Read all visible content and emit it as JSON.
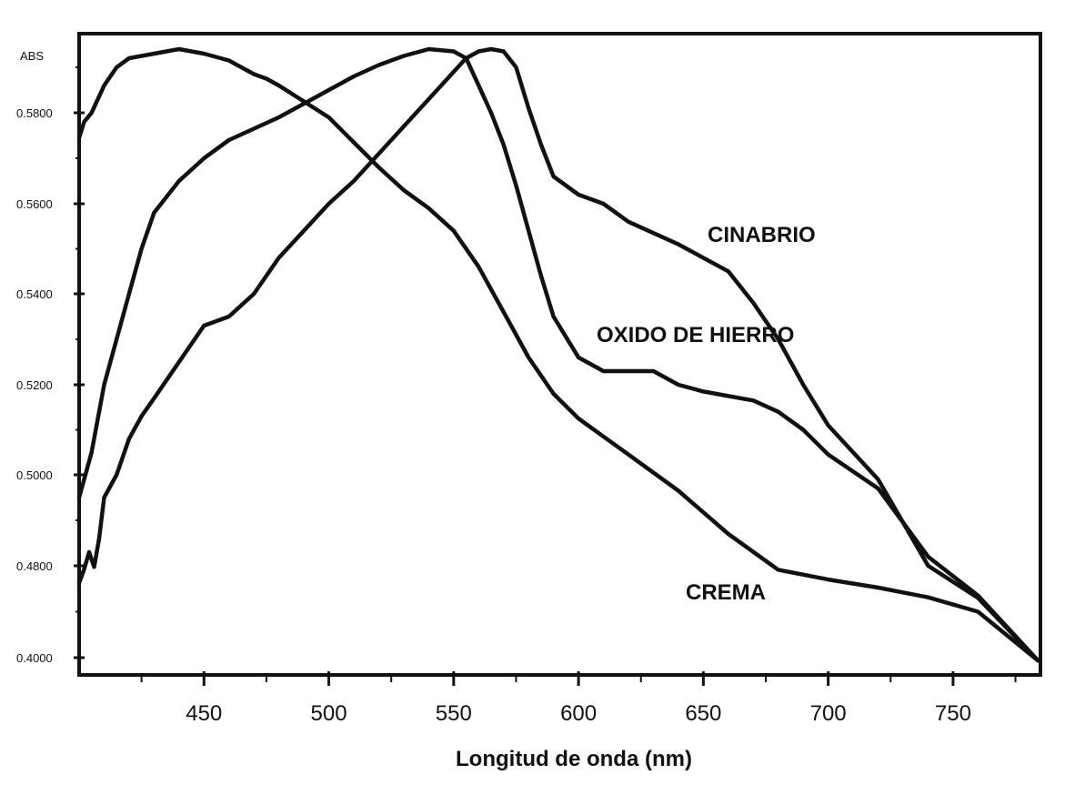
{
  "chart_data": {
    "type": "line",
    "xlabel": "Longitud de onda (nm)",
    "ylabel": "ABS",
    "x_ticks": [
      450,
      500,
      550,
      600,
      650,
      700,
      750
    ],
    "x_tick_labels": [
      "450",
      "500",
      "550",
      "600",
      "650",
      "700",
      "750"
    ],
    "y_ticks": [
      0.4,
      0.48,
      0.5,
      0.52,
      0.54,
      0.56,
      0.58
    ],
    "y_tick_labels": [
      "0.4000",
      "0.4800",
      "0.5000",
      "0.5200",
      "0.5400",
      "0.5600",
      "0.5800"
    ],
    "xlim": [
      400,
      785
    ],
    "grid": false,
    "colors": {
      "line": "#111111",
      "background": "#ffffff"
    },
    "series": [
      {
        "name": "CREMA",
        "x": [
          400,
          402,
          405,
          410,
          415,
          420,
          425,
          430,
          435,
          440,
          445,
          450,
          460,
          470,
          475,
          480,
          490,
          500,
          510,
          520,
          530,
          540,
          550,
          560,
          570,
          580,
          590,
          600,
          610,
          620,
          640,
          660,
          680,
          700,
          720,
          740,
          760,
          784
        ],
        "y": [
          0.5745,
          0.578,
          0.58,
          0.586,
          0.59,
          0.592,
          0.5925,
          0.593,
          0.5935,
          0.594,
          0.5935,
          0.593,
          0.5915,
          0.5885,
          0.5875,
          0.586,
          0.5825,
          0.579,
          0.5735,
          0.568,
          0.563,
          0.559,
          0.554,
          0.546,
          0.536,
          0.526,
          0.518,
          0.5125,
          0.5085,
          0.5045,
          0.4965,
          0.487,
          0.4765,
          0.468,
          0.461,
          0.4525,
          0.44,
          0.3975
        ]
      },
      {
        "name": "OXIDO DE HIERRO",
        "x": [
          400,
          405,
          410,
          415,
          420,
          425,
          430,
          440,
          450,
          460,
          470,
          480,
          490,
          500,
          510,
          520,
          530,
          540,
          550,
          555,
          560,
          565,
          570,
          575,
          580,
          585,
          590,
          600,
          610,
          620,
          630,
          640,
          650,
          660,
          670,
          680,
          690,
          700,
          720,
          740,
          760,
          784
        ],
        "y": [
          0.495,
          0.505,
          0.52,
          0.53,
          0.54,
          0.55,
          0.558,
          0.565,
          0.57,
          0.574,
          0.5765,
          0.579,
          0.582,
          0.585,
          0.588,
          0.5905,
          0.5925,
          0.594,
          0.5935,
          0.592,
          0.586,
          0.58,
          0.573,
          0.564,
          0.554,
          0.544,
          0.535,
          0.526,
          0.523,
          0.523,
          0.523,
          0.52,
          0.5185,
          0.5175,
          0.5165,
          0.514,
          0.51,
          0.5045,
          0.497,
          0.482,
          0.454,
          0.3975
        ]
      },
      {
        "name": "CINABRIO",
        "x": [
          400,
          402,
          404,
          406,
          408,
          410,
          415,
          420,
          425,
          430,
          440,
          450,
          460,
          470,
          480,
          490,
          500,
          510,
          520,
          530,
          540,
          550,
          555,
          560,
          565,
          570,
          575,
          580,
          585,
          590,
          600,
          610,
          620,
          640,
          660,
          670,
          680,
          690,
          700,
          720,
          740,
          760,
          784
        ],
        "y": [
          0.465,
          0.477,
          0.483,
          0.479,
          0.486,
          0.495,
          0.5,
          0.508,
          0.513,
          0.517,
          0.525,
          0.533,
          0.535,
          0.54,
          0.548,
          0.554,
          0.56,
          0.565,
          0.571,
          0.577,
          0.583,
          0.589,
          0.592,
          0.5935,
          0.594,
          0.5935,
          0.59,
          0.581,
          0.573,
          0.566,
          0.562,
          0.56,
          0.556,
          0.551,
          0.545,
          0.538,
          0.53,
          0.52,
          0.511,
          0.499,
          0.48,
          0.452,
          0.3975
        ]
      }
    ]
  }
}
